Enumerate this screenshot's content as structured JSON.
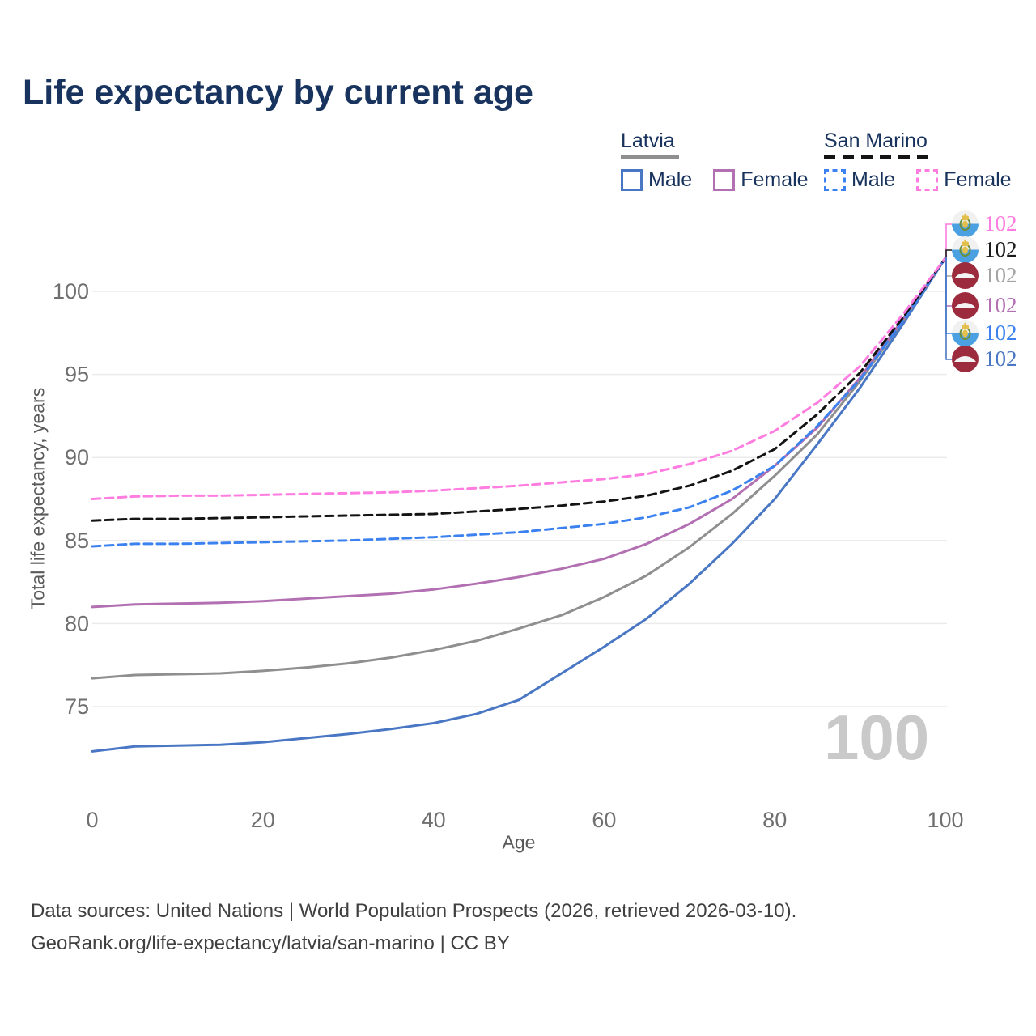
{
  "title": "Life expectancy by current age",
  "watermark": "100",
  "legend": {
    "groups": [
      {
        "label": "Latvia",
        "line_style": "solid",
        "underline_color": "#8f8f8f",
        "items": [
          {
            "label": "Male",
            "color": "#4a77c4"
          },
          {
            "label": "Female",
            "color": "#b26fb2"
          }
        ]
      },
      {
        "label": "San Marino",
        "line_style": "dashed",
        "underline_color": "#141414",
        "items": [
          {
            "label": "Male",
            "color": "#3b82f0"
          },
          {
            "label": "Female",
            "color": "#ff7ce0"
          }
        ]
      }
    ]
  },
  "chart_data": {
    "type": "line",
    "title": "Life expectancy by current age",
    "xlabel": "Age",
    "ylabel": "Total life expectancy, years",
    "xlim": [
      0,
      100
    ],
    "ylim": [
      71.5,
      103
    ],
    "x_ticks": [
      0,
      20,
      40,
      60,
      80,
      100
    ],
    "y_ticks": [
      75,
      80,
      85,
      90,
      95,
      100
    ],
    "grid": "horizontal",
    "legend_position": "top-right",
    "x": [
      0,
      5,
      10,
      15,
      20,
      25,
      30,
      35,
      40,
      45,
      50,
      55,
      60,
      65,
      70,
      75,
      80,
      85,
      90,
      95,
      100
    ],
    "series": [
      {
        "name": "Latvia Male",
        "country": "Latvia",
        "sex": "Male",
        "color": "#4a77c4",
        "dash": "solid",
        "values": [
          72.3,
          72.6,
          72.65,
          72.7,
          72.85,
          73.1,
          73.35,
          73.65,
          74.0,
          74.55,
          75.4,
          77.0,
          78.6,
          80.3,
          82.4,
          84.8,
          87.5,
          90.8,
          94.2,
          98.0,
          102
        ]
      },
      {
        "name": "Latvia Both sexes",
        "country": "Latvia",
        "sex": "Both",
        "color": "#8f8f8f",
        "dash": "solid",
        "values": [
          76.7,
          76.9,
          76.95,
          77.0,
          77.15,
          77.35,
          77.6,
          77.95,
          78.4,
          78.95,
          79.7,
          80.5,
          81.6,
          82.9,
          84.6,
          86.6,
          88.9,
          91.4,
          94.6,
          98.2,
          102
        ]
      },
      {
        "name": "Latvia Female",
        "country": "Latvia",
        "sex": "Female",
        "color": "#b26fb2",
        "dash": "solid",
        "values": [
          81.0,
          81.15,
          81.2,
          81.25,
          81.35,
          81.5,
          81.65,
          81.8,
          82.05,
          82.4,
          82.8,
          83.3,
          83.9,
          84.8,
          86.0,
          87.5,
          89.5,
          91.8,
          94.8,
          98.3,
          102
        ]
      },
      {
        "name": "San Marino Male",
        "country": "San Marino",
        "sex": "Male",
        "color": "#3b82f0",
        "dash": "dashed",
        "values": [
          84.65,
          84.8,
          84.8,
          84.85,
          84.9,
          84.95,
          85.0,
          85.1,
          85.2,
          85.35,
          85.5,
          85.75,
          86.0,
          86.4,
          87.0,
          88.0,
          89.5,
          91.9,
          94.7,
          98.2,
          102
        ]
      },
      {
        "name": "San Marino Both sexes",
        "country": "San Marino",
        "sex": "Both",
        "color": "#141414",
        "dash": "dashed",
        "values": [
          86.2,
          86.3,
          86.3,
          86.35,
          86.4,
          86.45,
          86.5,
          86.55,
          86.6,
          86.75,
          86.9,
          87.1,
          87.35,
          87.7,
          88.3,
          89.2,
          90.5,
          92.6,
          95.1,
          98.4,
          102
        ]
      },
      {
        "name": "San Marino Female",
        "country": "San Marino",
        "sex": "Female",
        "color": "#ff7ce0",
        "dash": "dashed",
        "values": [
          87.5,
          87.65,
          87.7,
          87.7,
          87.75,
          87.8,
          87.85,
          87.9,
          88.0,
          88.15,
          88.3,
          88.5,
          88.7,
          89.0,
          89.6,
          90.4,
          91.6,
          93.3,
          95.5,
          98.6,
          102
        ]
      }
    ],
    "end_labels": [
      {
        "label": "102",
        "series": "San Marino Female",
        "flag": "san-marino",
        "color": "#ff7ce0"
      },
      {
        "label": "102",
        "series": "San Marino Both sexes",
        "flag": "san-marino",
        "color": "#1a1a1a"
      },
      {
        "label": "102",
        "series": "Latvia Both sexes",
        "flag": "latvia",
        "color": "#a3a3a3"
      },
      {
        "label": "102",
        "series": "Latvia Female",
        "flag": "latvia",
        "color": "#b26fb2"
      },
      {
        "label": "102",
        "series": "San Marino Male",
        "flag": "san-marino",
        "color": "#3b82f0"
      },
      {
        "label": "102",
        "series": "Latvia Male",
        "flag": "latvia",
        "color": "#4a77c4"
      }
    ]
  },
  "footer": {
    "line1": "Data sources: United Nations | World Population Prospects (2026, retrieved 2026-03-10).",
    "line2": "GeoRank.org/life-expectancy/latvia/san-marino | CC BY"
  }
}
